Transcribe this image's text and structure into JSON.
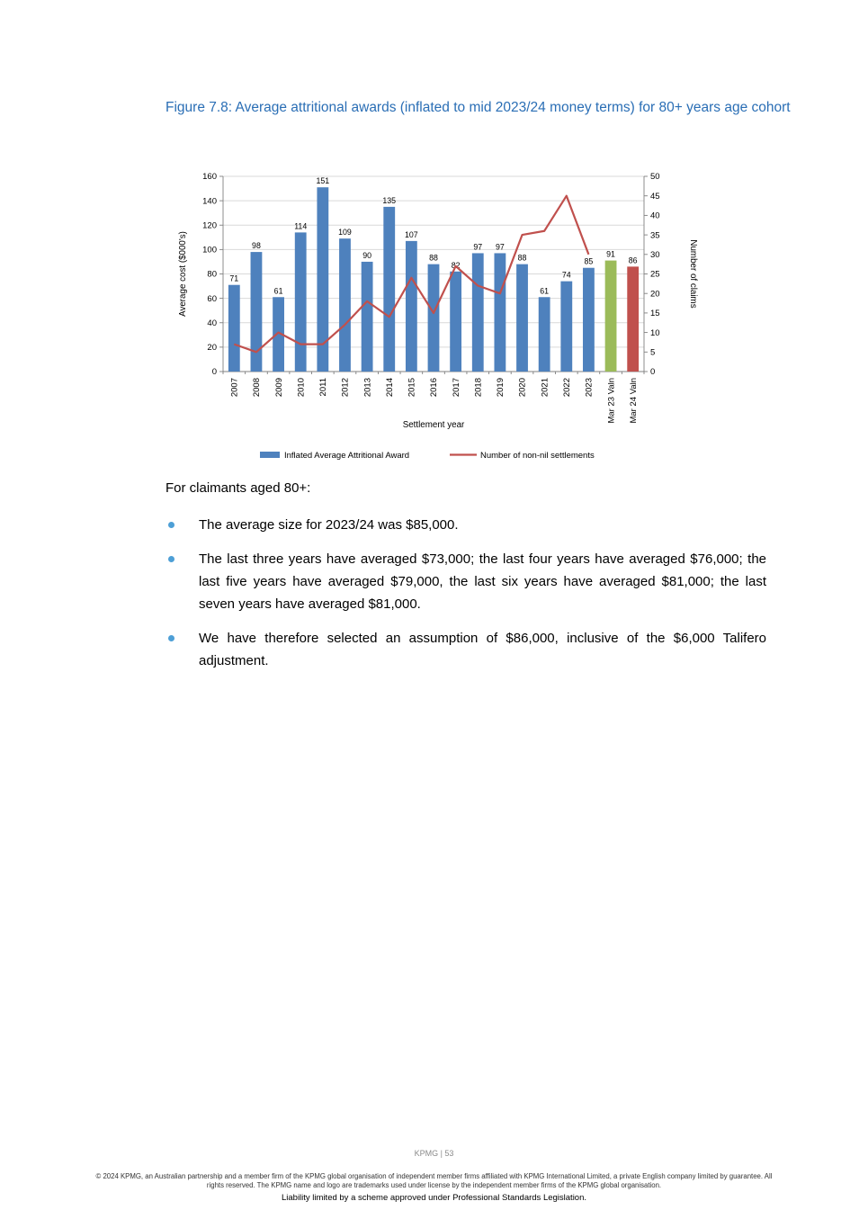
{
  "figure": {
    "title": "Figure 7.8: Average attritional awards (inflated to mid 2023/24 money terms) for 80+ years age cohort"
  },
  "chart_data": {
    "type": "bar+line",
    "categories": [
      "2007",
      "2008",
      "2009",
      "2010",
      "2011",
      "2012",
      "2013",
      "2014",
      "2015",
      "2016",
      "2017",
      "2018",
      "2019",
      "2020",
      "2021",
      "2022",
      "2023",
      "Mar 23 Valn",
      "Mar 24 Valn"
    ],
    "series": [
      {
        "name": "Inflated Average Attritional Award",
        "type": "bar",
        "axis": "left",
        "values": [
          71,
          98,
          61,
          114,
          151,
          109,
          90,
          135,
          107,
          88,
          82,
          97,
          97,
          88,
          61,
          74,
          85,
          91,
          86
        ]
      },
      {
        "name": "Number of non-nil settlements",
        "type": "line",
        "axis": "right",
        "values": [
          7,
          5,
          10,
          7,
          7,
          12,
          18,
          14,
          24,
          15,
          27,
          22,
          20,
          35,
          36,
          45,
          30,
          null,
          null
        ]
      }
    ],
    "bar_color": "#4E81BD",
    "bar_colors": [
      "#4E81BD",
      "#4E81BD",
      "#4E81BD",
      "#4E81BD",
      "#4E81BD",
      "#4E81BD",
      "#4E81BD",
      "#4E81BD",
      "#4E81BD",
      "#4E81BD",
      "#4E81BD",
      "#4E81BD",
      "#4E81BD",
      "#4E81BD",
      "#4E81BD",
      "#4E81BD",
      "#4E81BD",
      "#9BBB59",
      "#C0504D"
    ],
    "line_color": "#C0504D",
    "left_axis": {
      "label": "Average cost ($000's)",
      "min": 0,
      "max": 160,
      "step": 20
    },
    "right_axis": {
      "label": "Number of claims",
      "min": 0,
      "max": 50,
      "step": 5
    },
    "xlabel": "Settlement year",
    "grid": true,
    "legend_position": "bottom"
  },
  "body": {
    "intro": "For claimants aged 80+:",
    "bullets": [
      "The average size for 2023/24 was $85,000.",
      "The last three years have averaged $73,000; the last four years have averaged $76,000; the last five years have averaged $79,000, the last six years have averaged $81,000; the last seven years have averaged $81,000.",
      "We have therefore selected an assumption of $86,000, inclusive of the $6,000 Talifero adjustment."
    ]
  },
  "footer": {
    "page_label": "KPMG  |  53",
    "disclaimer": "© 2024 KPMG, an Australian partnership and a member firm of the KPMG global organisation of independent member firms affiliated with KPMG International Limited, a private English company limited by guarantee. All rights reserved. The KPMG name and logo are trademarks used under license by the independent member  firms of the KPMG global organisation.",
    "liability": "Liability limited by a scheme approved under Professional Standards Legislation."
  },
  "colors": {
    "heading_blue": "#2A6EB5",
    "bullet_blue": "#4D9FD6",
    "bar_blue": "#4E81BD",
    "bar_green": "#9BBB59",
    "bar_red": "#C0504D",
    "line_red": "#C0504D"
  }
}
